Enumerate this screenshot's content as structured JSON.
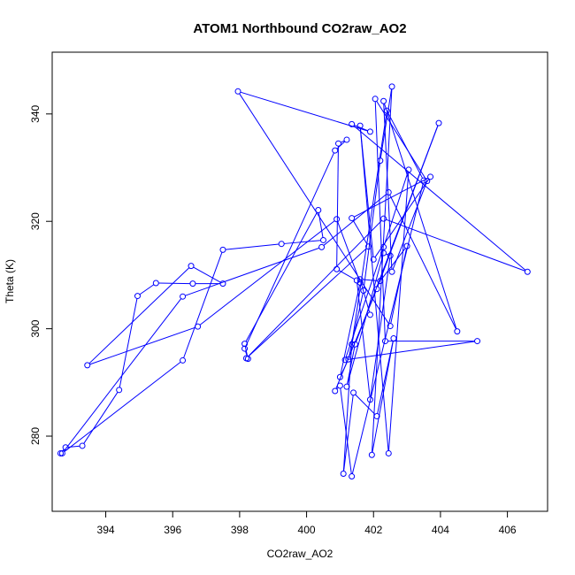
{
  "chart_data": {
    "type": "line",
    "title": "ATOM1 Northbound CO2raw_AO2",
    "xlabel": "CO2raw_AO2",
    "ylabel": "Theta (K)",
    "xlim": [
      392.4,
      407.2
    ],
    "ylim": [
      266.0,
      351.5
    ],
    "x_ticks": [
      394,
      396,
      398,
      400,
      402,
      404,
      406
    ],
    "y_ticks": [
      280,
      300,
      320,
      340
    ],
    "grid": false,
    "legend": "none",
    "color": "#0000ff",
    "marker": "open-circle",
    "x": [
      392.65,
      392.8,
      393.3,
      394.4,
      394.95,
      395.5,
      396.6,
      397.5,
      396.55,
      393.45,
      396.75,
      400.9,
      401.6,
      401.0,
      401.25,
      401.7,
      402.2,
      402.55,
      401.95,
      402.6,
      402.1,
      401.4,
      401.1,
      401.35,
      402.4,
      403.5,
      401.35,
      401.0,
      400.85,
      402.1,
      403.95,
      401.45,
      401.2,
      402.3,
      402.5,
      401.9,
      401.5,
      400.9,
      400.95,
      401.2,
      400.85,
      398.15,
      398.25,
      398.15,
      400.35,
      400.5,
      399.25,
      397.5,
      396.3,
      392.7,
      396.3,
      400.45,
      402.45,
      404.5,
      402.3,
      402.55,
      403.6,
      402.05,
      402.35,
      405.1,
      401.15,
      402.3,
      403.05,
      402.45,
      401.6,
      402.0,
      403.7,
      401.35,
      401.85,
      398.2,
      402.3,
      406.6,
      401.35,
      401.9,
      397.95,
      402.5,
      403.0,
      402.2,
      401.6,
      401.9
    ],
    "y": [
      276.8,
      277.9,
      278.2,
      288.6,
      306.1,
      308.5,
      308.4,
      308.4,
      311.7,
      293.2,
      300.4,
      320.4,
      308.6,
      291.0,
      294.3,
      307.1,
      331.3,
      345.1,
      276.5,
      298.2,
      283.7,
      288.1,
      273.0,
      297.1,
      340.6,
      327.6,
      272.5,
      289.4,
      288.4,
      307.4,
      338.3,
      297.1,
      289.2,
      314.1,
      313.6,
      286.8,
      309.0,
      311.1,
      334.5,
      335.2,
      333.2,
      296.3,
      294.4,
      297.2,
      322.1,
      316.5,
      315.8,
      314.7,
      294.1,
      276.8,
      306.0,
      315.2,
      325.4,
      299.5,
      342.4,
      310.6,
      327.5,
      342.8,
      297.7,
      297.7,
      294.2,
      315.2,
      329.6,
      276.8,
      337.8,
      312.9,
      328.3,
      320.6,
      315.3,
      294.5,
      320.5,
      310.6,
      338.1,
      336.7,
      344.2,
      300.5,
      315.4,
      308.9,
      309.2,
      302.6
    ]
  }
}
